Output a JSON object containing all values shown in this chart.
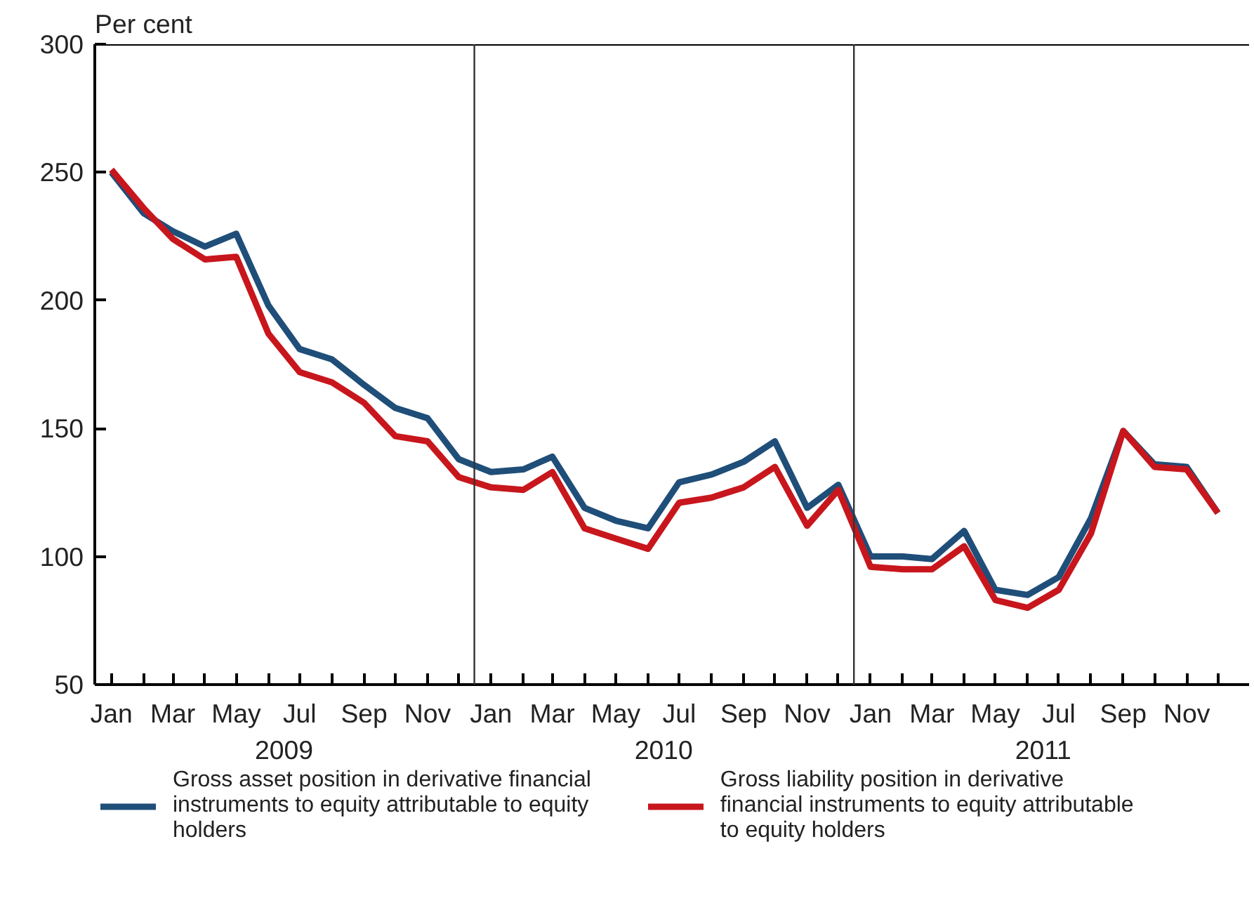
{
  "chart_data": {
    "type": "line",
    "ylabel": "Per cent",
    "x": [
      "2009-01",
      "2009-02",
      "2009-03",
      "2009-04",
      "2009-05",
      "2009-06",
      "2009-07",
      "2009-08",
      "2009-09",
      "2009-10",
      "2009-11",
      "2009-12",
      "2010-01",
      "2010-02",
      "2010-03",
      "2010-04",
      "2010-05",
      "2010-06",
      "2010-07",
      "2010-08",
      "2010-09",
      "2010-10",
      "2010-11",
      "2010-12",
      "2011-01",
      "2011-02",
      "2011-03",
      "2011-04",
      "2011-05",
      "2011-06",
      "2011-07",
      "2011-08",
      "2011-09",
      "2011-10",
      "2011-11",
      "2011-12"
    ],
    "series": [
      {
        "name": "Gross asset position in derivative financial instruments to equity attributable to equity holders",
        "color": "#1f4e79",
        "values": [
          250,
          234,
          227,
          221,
          226,
          198,
          181,
          177,
          167,
          158,
          154,
          138,
          133,
          134,
          139,
          119,
          114,
          111,
          129,
          132,
          137,
          145,
          119,
          128,
          100,
          100,
          99,
          110,
          87,
          85,
          92,
          115,
          149,
          136,
          135,
          117
        ]
      },
      {
        "name": "Gross liability position in derivative financial instruments to equity attributable to equity holders",
        "color": "#c8161d",
        "values": [
          251,
          236,
          224,
          216,
          217,
          187,
          172,
          168,
          160,
          147,
          145,
          131,
          127,
          126,
          133,
          111,
          107,
          103,
          121,
          123,
          127,
          135,
          112,
          126,
          96,
          95,
          95,
          104,
          83,
          80,
          87,
          109,
          149,
          135,
          134,
          117
        ]
      }
    ],
    "xlim": [
      "2008-12-16",
      "2011-12-31"
    ],
    "xticks": [
      {
        "value": "2009-01",
        "label": "Jan"
      },
      {
        "value": "2009-02",
        "label": null
      },
      {
        "value": "2009-03",
        "label": "Mar"
      },
      {
        "value": "2009-04",
        "label": null
      },
      {
        "value": "2009-05",
        "label": "May"
      },
      {
        "value": "2009-06",
        "label": null
      },
      {
        "value": "2009-07",
        "label": "Jul"
      },
      {
        "value": "2009-08",
        "label": null
      },
      {
        "value": "2009-09",
        "label": "Sep"
      },
      {
        "value": "2009-10",
        "label": null
      },
      {
        "value": "2009-11",
        "label": "Nov"
      },
      {
        "value": "2009-12",
        "label": null
      },
      {
        "value": "2010-01",
        "label": "Jan"
      },
      {
        "value": "2010-02",
        "label": null
      },
      {
        "value": "2010-03",
        "label": "Mar"
      },
      {
        "value": "2010-04",
        "label": null
      },
      {
        "value": "2010-05",
        "label": "May"
      },
      {
        "value": "2010-06",
        "label": null
      },
      {
        "value": "2010-07",
        "label": "Jul"
      },
      {
        "value": "2010-08",
        "label": null
      },
      {
        "value": "2010-09",
        "label": "Sep"
      },
      {
        "value": "2010-10",
        "label": null
      },
      {
        "value": "2010-11",
        "label": "Nov"
      },
      {
        "value": "2010-12",
        "label": null
      },
      {
        "value": "2011-01",
        "label": "Jan"
      },
      {
        "value": "2011-02",
        "label": null
      },
      {
        "value": "2011-03",
        "label": "Mar"
      },
      {
        "value": "2011-04",
        "label": null
      },
      {
        "value": "2011-05",
        "label": "May"
      },
      {
        "value": "2011-06",
        "label": null
      },
      {
        "value": "2011-07",
        "label": "Jul"
      },
      {
        "value": "2011-08",
        "label": null
      },
      {
        "value": "2011-09",
        "label": "Sep"
      },
      {
        "value": "2011-10",
        "label": null
      },
      {
        "value": "2011-11",
        "label": "Nov"
      },
      {
        "value": "2011-12",
        "label": null
      }
    ],
    "x2lim": [
      "2008-12-16",
      "2011-12-31"
    ],
    "x2ticks": [
      {
        "value": "2009-06-16",
        "label": "2009"
      },
      {
        "value": "2010-06-16",
        "label": "2010"
      },
      {
        "value": "2011-06-16",
        "label": "2011"
      }
    ],
    "ylim": [
      50,
      300
    ],
    "yticks": [
      50,
      100,
      150,
      200,
      250,
      300
    ],
    "ref_lines": [
      {
        "axis": "x",
        "value": "2009-12-16",
        "color": "#333333"
      },
      {
        "axis": "x",
        "value": "2010-12-16",
        "color": "#333333"
      }
    ],
    "grid": false,
    "legend": "bottom",
    "marker": "none",
    "line_style": "solid"
  }
}
